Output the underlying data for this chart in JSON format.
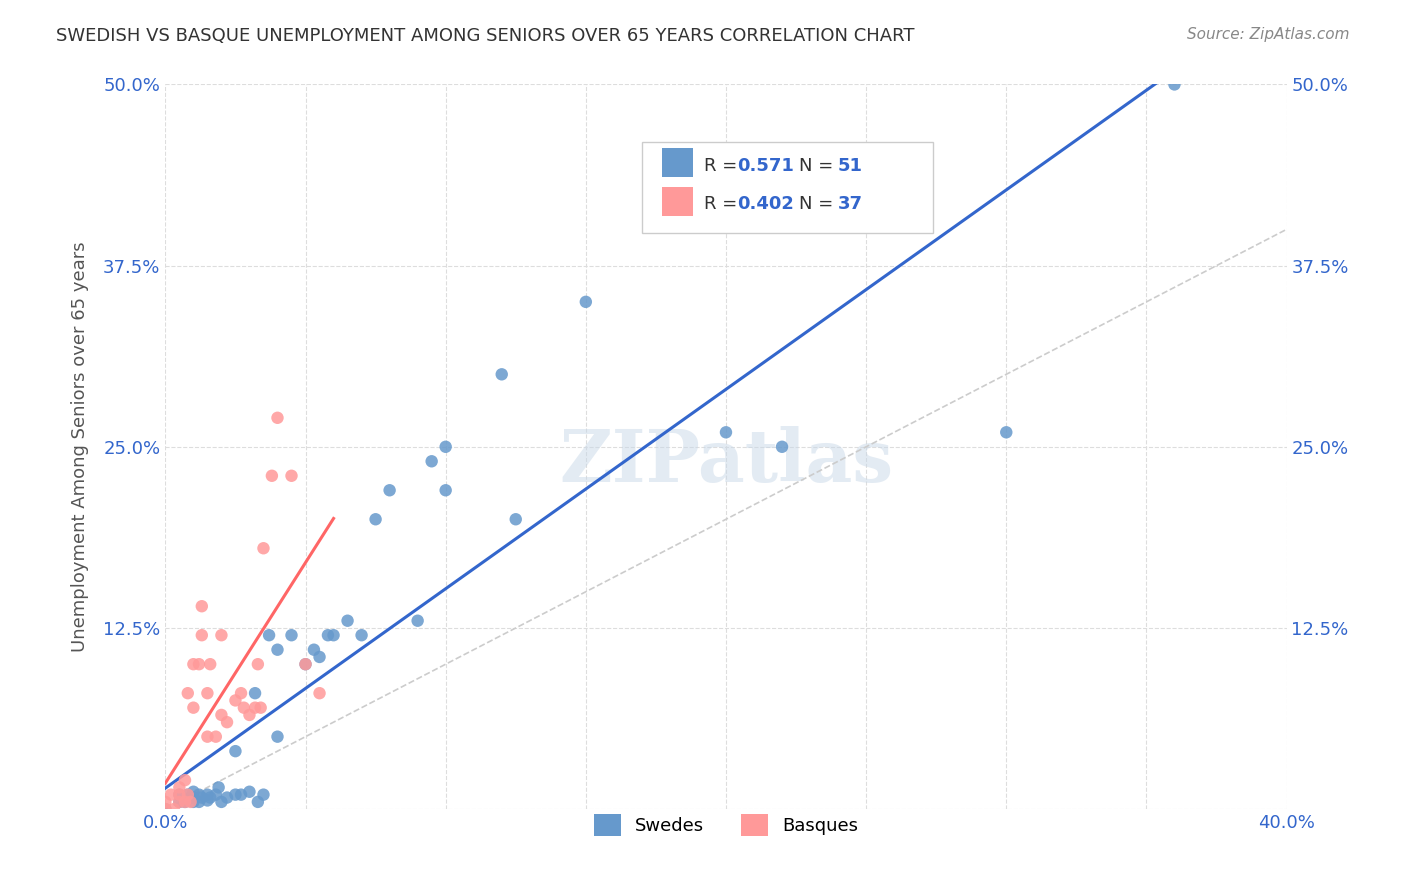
{
  "title": "SWEDISH VS BASQUE UNEMPLOYMENT AMONG SENIORS OVER 65 YEARS CORRELATION CHART",
  "source": "Source: ZipAtlas.com",
  "xlabel": "",
  "ylabel": "Unemployment Among Seniors over 65 years",
  "xlim": [
    0.0,
    0.4
  ],
  "ylim": [
    0.0,
    0.5
  ],
  "xticks": [
    0.0,
    0.05,
    0.1,
    0.15,
    0.2,
    0.25,
    0.3,
    0.35,
    0.4
  ],
  "xticklabels": [
    "0.0%",
    "",
    "",
    "",
    "",
    "",
    "",
    "",
    "40.0%"
  ],
  "ytick_positions": [
    0.0,
    0.125,
    0.25,
    0.375,
    0.5
  ],
  "ytick_labels": [
    "",
    "12.5%",
    "25.0%",
    "37.5%",
    "50.0%"
  ],
  "swedes_R": 0.571,
  "swedes_N": 51,
  "basques_R": 0.402,
  "basques_N": 37,
  "swedes_color": "#6699cc",
  "basques_color": "#ff9999",
  "trendline_swedes_color": "#3366cc",
  "trendline_basques_color": "#ff6666",
  "diagonal_color": "#cccccc",
  "swedes_x": [
    0.0,
    0.005,
    0.005,
    0.007,
    0.008,
    0.008,
    0.009,
    0.01,
    0.01,
    0.01,
    0.012,
    0.012,
    0.013,
    0.015,
    0.015,
    0.016,
    0.018,
    0.019,
    0.02,
    0.022,
    0.025,
    0.025,
    0.027,
    0.03,
    0.032,
    0.033,
    0.035,
    0.037,
    0.04,
    0.04,
    0.045,
    0.05,
    0.053,
    0.055,
    0.058,
    0.06,
    0.065,
    0.07,
    0.075,
    0.08,
    0.09,
    0.095,
    0.1,
    0.1,
    0.12,
    0.125,
    0.15,
    0.2,
    0.22,
    0.3,
    0.36
  ],
  "swedes_y": [
    0.0,
    0.005,
    0.01,
    0.005,
    0.007,
    0.01,
    0.008,
    0.005,
    0.008,
    0.012,
    0.005,
    0.01,
    0.008,
    0.006,
    0.01,
    0.008,
    0.01,
    0.015,
    0.005,
    0.008,
    0.01,
    0.04,
    0.01,
    0.012,
    0.08,
    0.005,
    0.01,
    0.12,
    0.11,
    0.05,
    0.12,
    0.1,
    0.11,
    0.105,
    0.12,
    0.12,
    0.13,
    0.12,
    0.2,
    0.22,
    0.13,
    0.24,
    0.25,
    0.22,
    0.3,
    0.2,
    0.35,
    0.26,
    0.25,
    0.26,
    0.5
  ],
  "basques_x": [
    0.0,
    0.0,
    0.002,
    0.003,
    0.005,
    0.005,
    0.005,
    0.007,
    0.007,
    0.008,
    0.008,
    0.009,
    0.01,
    0.01,
    0.012,
    0.013,
    0.013,
    0.015,
    0.015,
    0.016,
    0.018,
    0.02,
    0.02,
    0.022,
    0.025,
    0.027,
    0.028,
    0.03,
    0.032,
    0.033,
    0.034,
    0.035,
    0.038,
    0.04,
    0.045,
    0.05,
    0.055
  ],
  "basques_y": [
    0.0,
    0.005,
    0.01,
    0.0,
    0.005,
    0.01,
    0.015,
    0.005,
    0.02,
    0.01,
    0.08,
    0.005,
    0.07,
    0.1,
    0.1,
    0.12,
    0.14,
    0.05,
    0.08,
    0.1,
    0.05,
    0.065,
    0.12,
    0.06,
    0.075,
    0.08,
    0.07,
    0.065,
    0.07,
    0.1,
    0.07,
    0.18,
    0.23,
    0.27,
    0.23,
    0.1,
    0.08
  ],
  "watermark": "ZIPatlas",
  "background_color": "#ffffff",
  "grid_color": "#dddddd"
}
